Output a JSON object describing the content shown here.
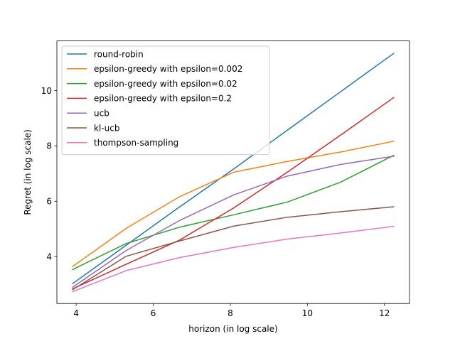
{
  "chart_data": {
    "type": "line",
    "xlabel": "horizon (in log scale)",
    "ylabel": "Regret (in log scale)",
    "xlim": [
      3.5,
      12.65
    ],
    "ylim": [
      2.3,
      11.8
    ],
    "xticks": [
      4,
      6,
      8,
      10,
      12
    ],
    "yticks": [
      4,
      6,
      8,
      10
    ],
    "grid": false,
    "legend_position": "upper-left",
    "x": [
      3.91,
      5.3,
      6.68,
      8.09,
      9.48,
      10.86,
      12.24
    ],
    "series": [
      {
        "name": "round-robin",
        "color": "#1f77b4",
        "values": [
          3.02,
          4.41,
          5.79,
          7.17,
          8.57,
          9.96,
          11.35
        ]
      },
      {
        "name": "epsilon-greedy with epsilon=0.002",
        "color": "#ff7f0e",
        "values": [
          3.64,
          5.02,
          6.16,
          7.05,
          7.44,
          7.78,
          8.17
        ]
      },
      {
        "name": "epsilon-greedy with epsilon=0.02",
        "color": "#2ca02c",
        "values": [
          3.53,
          4.47,
          5.06,
          5.51,
          5.97,
          6.69,
          7.66
        ]
      },
      {
        "name": "epsilon-greedy with epsilon=0.2",
        "color": "#d62728",
        "values": [
          2.83,
          3.72,
          4.59,
          5.76,
          7.05,
          8.39,
          9.75
        ]
      },
      {
        "name": "ucb",
        "color": "#9467bd",
        "values": [
          2.89,
          4.22,
          5.3,
          6.23,
          6.91,
          7.33,
          7.63
        ]
      },
      {
        "name": "kl-ucb",
        "color": "#8c564b",
        "values": [
          2.8,
          4.01,
          4.56,
          5.1,
          5.42,
          5.62,
          5.8
        ]
      },
      {
        "name": "thompson-sampling",
        "color": "#e377c2",
        "values": [
          2.73,
          3.49,
          3.96,
          4.33,
          4.63,
          4.85,
          5.09
        ]
      }
    ]
  }
}
